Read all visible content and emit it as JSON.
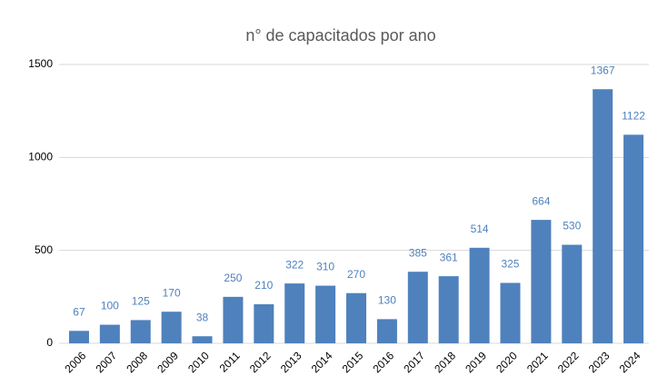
{
  "chart_data": {
    "type": "bar",
    "title": "n° de capacitados por ano",
    "categories": [
      "2006",
      "2007",
      "2008",
      "2009",
      "2010",
      "2011",
      "2012",
      "2013",
      "2014",
      "2015",
      "2016",
      "2017",
      "2018",
      "2019",
      "2020",
      "2021",
      "2022",
      "2023",
      "2024"
    ],
    "values": [
      67,
      100,
      125,
      170,
      38,
      250,
      210,
      322,
      310,
      270,
      130,
      385,
      361,
      514,
      325,
      664,
      530,
      1367,
      1122
    ],
    "color": "#4f81bd",
    "ylim": [
      0,
      1500
    ],
    "yticks": [
      0,
      500,
      1000,
      1500
    ],
    "grid": true,
    "data_labels": true
  }
}
